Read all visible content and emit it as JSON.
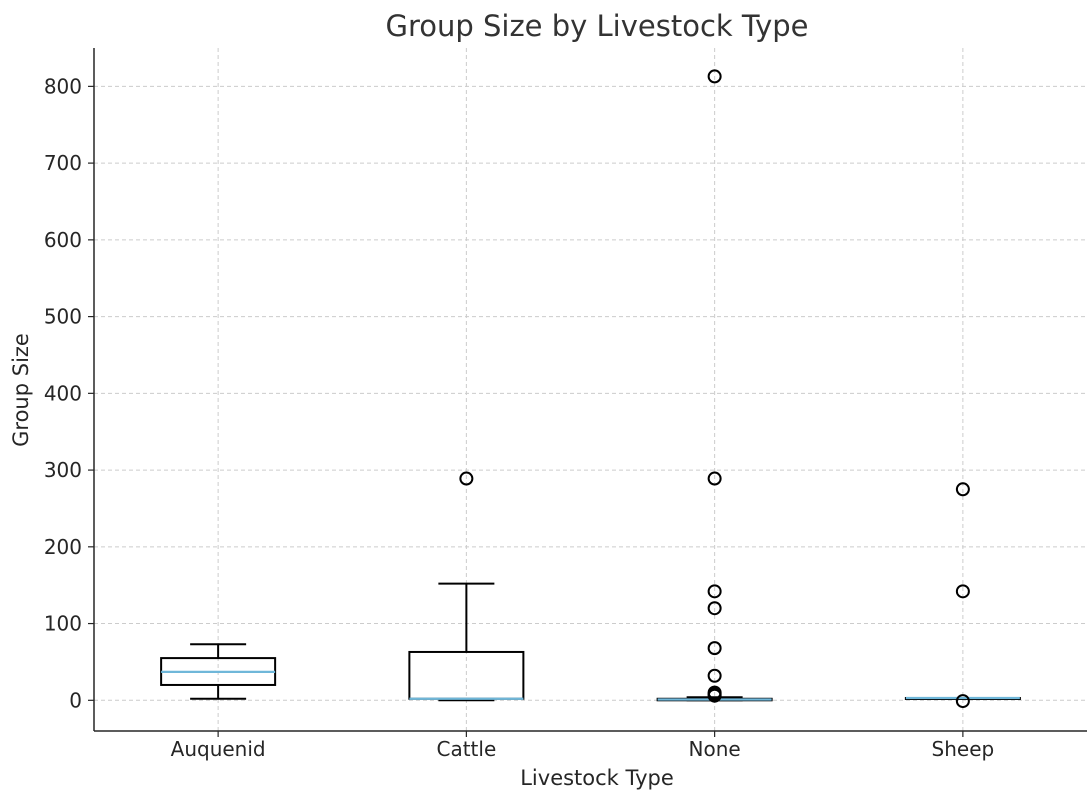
{
  "chart_data": {
    "type": "boxplot",
    "title": "Group Size by Livestock Type",
    "xlabel": "Livestock Type",
    "ylabel": "Group Size",
    "ylim": [
      -40,
      850
    ],
    "yticks": [
      0,
      100,
      200,
      300,
      400,
      500,
      600,
      700,
      800
    ],
    "grid": true,
    "categories": [
      "Auquenid",
      "Cattle",
      "None",
      "Sheep"
    ],
    "boxes": [
      {
        "category": "Auquenid",
        "whisker_low": 2,
        "q1": 20,
        "median": 37,
        "q3": 55,
        "whisker_high": 73,
        "fliers": []
      },
      {
        "category": "Cattle",
        "whisker_low": 0,
        "q1": 2,
        "median": 2,
        "q3": 63,
        "whisker_high": 152,
        "fliers": [
          289
        ]
      },
      {
        "category": "None",
        "whisker_low": 0,
        "q1": 0,
        "median": 1,
        "q3": 2,
        "whisker_high": 4,
        "fliers": [
          813,
          289,
          142,
          120,
          68,
          32,
          10,
          8,
          6
        ]
      },
      {
        "category": "Sheep",
        "whisker_low": 3,
        "q1": 3,
        "median": 3,
        "q3": 3,
        "whisker_high": 3,
        "fliers": [
          275,
          142,
          -1
        ]
      }
    ],
    "colors": {
      "median": "#6fb7d9",
      "box": "#000000",
      "grid": "#cccccc"
    }
  }
}
